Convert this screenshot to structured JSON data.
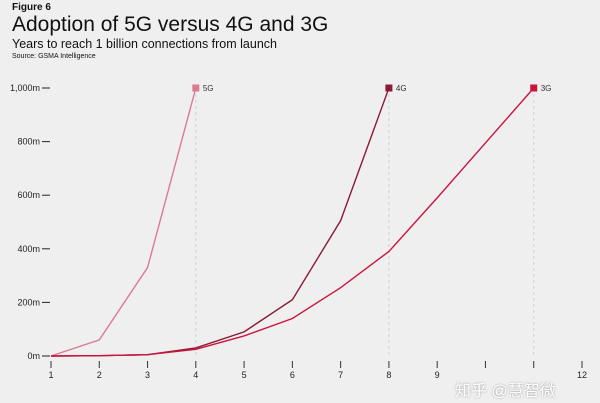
{
  "figure_label": "Figure 6",
  "watermark": "知乎 @慧智微",
  "chart_data": {
    "type": "line",
    "title": "Adoption of 5G versus 4G and 3G",
    "subtitle": "Years to reach 1 billion connections from launch",
    "source": "Source: GSMA Intelligence",
    "xlim": [
      1,
      12
    ],
    "ylim": [
      0,
      1000
    ],
    "x_ticks": [
      "1",
      "2",
      "3",
      "4",
      "5",
      "6",
      "7",
      "8",
      "9",
      "",
      "",
      "12"
    ],
    "y_ticks": [
      {
        "value": 0,
        "label": "0m"
      },
      {
        "value": 200,
        "label": "200m"
      },
      {
        "value": 400,
        "label": "400m"
      },
      {
        "value": 600,
        "label": "600m"
      },
      {
        "value": 800,
        "label": "800m"
      },
      {
        "value": 1000,
        "label": "1,000m"
      }
    ],
    "grid": false,
    "series": [
      {
        "name": "5G",
        "color": "#db7a92",
        "x": [
          1,
          2,
          3,
          4
        ],
        "values": [
          0,
          60,
          330,
          1000
        ]
      },
      {
        "name": "4G",
        "color": "#8c1a36",
        "x": [
          1,
          2,
          3,
          4,
          5,
          6,
          7,
          8
        ],
        "values": [
          0,
          1,
          5,
          30,
          90,
          210,
          505,
          1000
        ]
      },
      {
        "name": "3G",
        "color": "#c8163f",
        "x": [
          1,
          2,
          3,
          4,
          5,
          6,
          7,
          8,
          9,
          10,
          11
        ],
        "values": [
          0,
          1,
          5,
          25,
          75,
          140,
          255,
          390,
          590,
          795,
          1000
        ]
      }
    ]
  }
}
